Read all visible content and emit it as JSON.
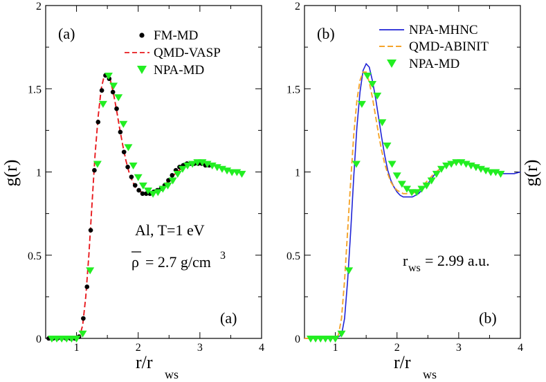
{
  "chart_data": [
    {
      "type": "line",
      "panel": "left",
      "panel_label": "(a)",
      "corner_label": "(a)",
      "xlabel_main": "r/r",
      "xlabel_sub": "ws",
      "ylabel": "g(r)",
      "xlim": [
        0.5,
        4
      ],
      "ylim": [
        0,
        2
      ],
      "xticks": [
        {
          "value": 1,
          "label": "1"
        },
        {
          "value": 2,
          "label": "2"
        },
        {
          "value": 3,
          "label": "3"
        },
        {
          "value": 4,
          "label": "4"
        }
      ],
      "yticks": [
        {
          "value": 0,
          "label": "0"
        },
        {
          "value": 0.5,
          "label": "0.5"
        },
        {
          "value": 1,
          "label": "1"
        },
        {
          "value": 1.5,
          "label": "1.5"
        },
        {
          "value": 2,
          "label": "2"
        }
      ],
      "annotation_line1": "Al, T=1 eV",
      "annotation_rho": "ρ",
      "annotation_rho_value": "= 2.7 g/cm",
      "annotation_rho_exp": "3",
      "series": [
        {
          "name": "FM-MD",
          "style": "dots",
          "color": "#000000",
          "x": [
            0.55,
            0.62,
            0.69,
            0.76,
            0.83,
            0.9,
            0.97,
            1.04,
            1.11,
            1.17,
            1.23,
            1.29,
            1.35,
            1.41,
            1.47,
            1.53,
            1.59,
            1.65,
            1.71,
            1.77,
            1.83,
            1.89,
            1.95,
            2.01,
            2.07,
            2.13,
            2.19,
            2.25,
            2.31,
            2.37,
            2.43,
            2.49,
            2.55,
            2.61,
            2.67,
            2.73,
            2.79,
            2.85,
            2.91,
            2.97,
            3.03,
            3.09,
            3.15
          ],
          "y": [
            0,
            0,
            0,
            0,
            0,
            0,
            0,
            0.01,
            0.12,
            0.31,
            0.65,
            1.01,
            1.3,
            1.49,
            1.58,
            1.56,
            1.48,
            1.38,
            1.24,
            1.12,
            1.03,
            0.97,
            0.92,
            0.89,
            0.87,
            0.87,
            0.87,
            0.88,
            0.89,
            0.9,
            0.92,
            0.95,
            0.98,
            1.01,
            1.03,
            1.04,
            1.05,
            1.05,
            1.05,
            1.05,
            1.05,
            1.04,
            1.04
          ]
        },
        {
          "name": "QMD-VASP",
          "style": "dashed",
          "color": "#e8191d",
          "x": [
            0.6,
            0.9,
            1.0,
            1.05,
            1.1,
            1.15,
            1.2,
            1.25,
            1.3,
            1.35,
            1.4,
            1.45,
            1.5,
            1.55,
            1.6,
            1.65,
            1.7,
            1.75,
            1.8,
            1.85,
            1.9,
            1.95,
            2.0,
            2.05,
            2.1,
            2.15,
            2.2,
            2.25,
            2.3,
            2.35,
            2.4,
            2.5,
            2.6,
            2.7,
            2.8,
            2.9,
            3.0,
            3.1,
            3.2
          ],
          "y": [
            0,
            0,
            0,
            0.01,
            0.08,
            0.25,
            0.5,
            0.8,
            1.1,
            1.33,
            1.5,
            1.58,
            1.59,
            1.55,
            1.47,
            1.37,
            1.26,
            1.16,
            1.07,
            1.0,
            0.95,
            0.91,
            0.89,
            0.88,
            0.87,
            0.87,
            0.87,
            0.87,
            0.88,
            0.89,
            0.91,
            0.95,
            0.99,
            1.02,
            1.04,
            1.05,
            1.05,
            1.05,
            1.04
          ]
        },
        {
          "name": "NPA-MD",
          "style": "triangles",
          "color": "#22ee22",
          "x": [
            0.6,
            0.68,
            0.76,
            0.84,
            0.92,
            1.0,
            1.1,
            1.22,
            1.34,
            1.43,
            1.52,
            1.6,
            1.68,
            1.76,
            1.84,
            1.92,
            2.0,
            2.08,
            2.16,
            2.24,
            2.32,
            2.4,
            2.48,
            2.56,
            2.64,
            2.72,
            2.8,
            2.88,
            2.96,
            3.04,
            3.12,
            3.2,
            3.28,
            3.36,
            3.44,
            3.52,
            3.6,
            3.68
          ],
          "y": [
            0,
            0,
            0,
            0,
            0,
            0,
            0.03,
            0.41,
            1.05,
            1.41,
            1.58,
            1.52,
            1.45,
            1.29,
            1.15,
            1.04,
            0.97,
            0.92,
            0.89,
            0.87,
            0.88,
            0.9,
            0.92,
            0.95,
            0.99,
            1.02,
            1.04,
            1.05,
            1.06,
            1.06,
            1.05,
            1.04,
            1.03,
            1.02,
            1.01,
            1.0,
            1.0,
            0.99
          ]
        }
      ]
    },
    {
      "type": "line",
      "panel": "right",
      "panel_label": "(b)",
      "corner_label": "(b)",
      "xlabel_main": "r/r",
      "xlabel_sub": "ws",
      "ylabel": "g(r)",
      "xlim": [
        0.5,
        4
      ],
      "ylim": [
        0,
        2
      ],
      "xticks": [
        {
          "value": 1,
          "label": "1"
        },
        {
          "value": 2,
          "label": "2"
        },
        {
          "value": 3,
          "label": "3"
        },
        {
          "value": 4,
          "label": "4"
        }
      ],
      "yticks": [
        {
          "value": 0,
          "label": "0"
        },
        {
          "value": 0.5,
          "label": "0.5"
        },
        {
          "value": 1,
          "label": "1"
        },
        {
          "value": 1.5,
          "label": "1.5"
        },
        {
          "value": 2,
          "label": "2"
        }
      ],
      "annotation_rws_main": "r",
      "annotation_rws_sub": "ws",
      "annotation_rws_value": "= 2.99 a.u.",
      "series": [
        {
          "name": "NPA-MHNC",
          "style": "solid",
          "color": "#1f23d6",
          "x": [
            0.5,
            1.0,
            1.1,
            1.15,
            1.2,
            1.25,
            1.3,
            1.35,
            1.4,
            1.45,
            1.5,
            1.55,
            1.6,
            1.65,
            1.7,
            1.75,
            1.8,
            1.85,
            1.9,
            1.95,
            2.0,
            2.05,
            2.1,
            2.15,
            2.2,
            2.25,
            2.3,
            2.35,
            2.4,
            2.5,
            2.6,
            2.7,
            2.8,
            2.9,
            3.0,
            3.1,
            3.2,
            3.3,
            3.4,
            3.5,
            3.6,
            3.7,
            3.8,
            3.9,
            4.0
          ],
          "y": [
            0,
            0,
            0.02,
            0.12,
            0.35,
            0.65,
            0.98,
            1.27,
            1.48,
            1.61,
            1.65,
            1.63,
            1.55,
            1.45,
            1.33,
            1.21,
            1.1,
            1.01,
            0.95,
            0.91,
            0.88,
            0.86,
            0.85,
            0.85,
            0.85,
            0.85,
            0.86,
            0.87,
            0.89,
            0.93,
            0.98,
            1.02,
            1.04,
            1.06,
            1.06,
            1.06,
            1.05,
            1.04,
            1.02,
            1.01,
            1.0,
            0.99,
            0.99,
            0.99,
            1.0
          ]
        },
        {
          "name": "QMD-ABINIT",
          "style": "dashed",
          "color": "#f5a42a",
          "x": [
            0.5,
            0.9,
            1.0,
            1.05,
            1.1,
            1.15,
            1.2,
            1.25,
            1.3,
            1.35,
            1.4,
            1.45,
            1.5,
            1.55,
            1.6,
            1.65,
            1.7,
            1.75,
            1.8,
            1.85,
            1.9,
            1.95,
            2.0,
            2.05,
            2.1,
            2.15,
            2.2,
            2.25,
            2.3,
            2.35,
            2.4,
            2.5,
            2.6,
            2.7,
            2.8,
            2.9,
            3.0,
            3.1,
            3.2,
            3.3
          ],
          "y": [
            0,
            0,
            0,
            0.02,
            0.12,
            0.35,
            0.65,
            0.95,
            1.23,
            1.43,
            1.55,
            1.6,
            1.6,
            1.54,
            1.45,
            1.34,
            1.23,
            1.13,
            1.05,
            0.99,
            0.94,
            0.91,
            0.89,
            0.88,
            0.87,
            0.87,
            0.87,
            0.87,
            0.88,
            0.89,
            0.91,
            0.95,
            0.99,
            1.02,
            1.04,
            1.05,
            1.06,
            1.05,
            1.05,
            1.04
          ]
        },
        {
          "name": "NPA-MD",
          "style": "triangles",
          "color": "#22ee22",
          "x": [
            0.6,
            0.68,
            0.76,
            0.84,
            0.92,
            1.0,
            1.1,
            1.22,
            1.34,
            1.43,
            1.52,
            1.6,
            1.68,
            1.76,
            1.84,
            1.92,
            2.0,
            2.08,
            2.16,
            2.24,
            2.32,
            2.4,
            2.48,
            2.56,
            2.64,
            2.72,
            2.8,
            2.88,
            2.96,
            3.04,
            3.12,
            3.2,
            3.28,
            3.36,
            3.44,
            3.52,
            3.6,
            3.68
          ],
          "y": [
            0,
            0,
            0,
            0,
            0,
            0,
            0.03,
            0.41,
            1.05,
            1.41,
            1.58,
            1.53,
            1.46,
            1.3,
            1.16,
            1.05,
            0.98,
            0.93,
            0.9,
            0.88,
            0.88,
            0.9,
            0.92,
            0.95,
            0.99,
            1.02,
            1.04,
            1.05,
            1.06,
            1.06,
            1.05,
            1.04,
            1.03,
            1.02,
            1.01,
            1.0,
            1.0,
            0.99
          ]
        }
      ]
    }
  ]
}
